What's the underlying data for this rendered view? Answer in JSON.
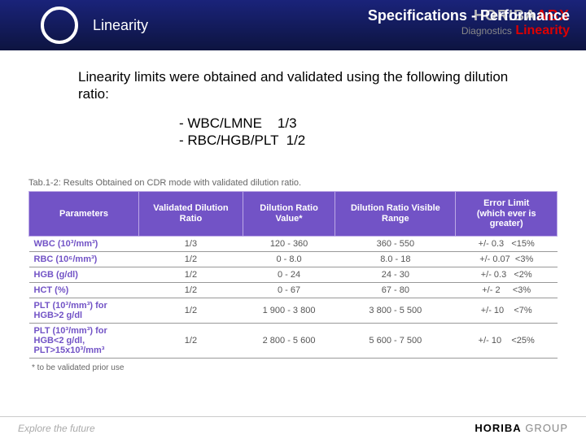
{
  "header": {
    "title": "Linearity",
    "spec": "Specifications - Performance",
    "brand_main": "HORIBA",
    "brand_sub": "ABX",
    "brand_diag": "Diagnostics",
    "sub_linearity": "Linearity"
  },
  "body": {
    "intro": "Linearity limits were obtained and validated using the following dilution ratio:",
    "line1": "- WBC/LMNE    1/3",
    "line2": "- RBC/HGB/PLT  1/2"
  },
  "table": {
    "caption": "Tab.1-2: Results Obtained on CDR mode with validated dilution ratio.",
    "headers": [
      "Parameters",
      "Validated Dilution Ratio",
      "Dilution Ratio Value*",
      "Dilution Ratio Visible Range",
      "Error Limit (which ever is greater)"
    ],
    "rows": [
      [
        "WBC (10³/mm³)",
        "1/3",
        "120 - 360",
        "360 - 550",
        "+/- 0.3   <15%"
      ],
      [
        "RBC (10⁶/mm³)",
        "1/2",
        "0 - 8.0",
        "8.0 - 18",
        "+/- 0.07  <3%"
      ],
      [
        "HGB (g/dl)",
        "1/2",
        "0 - 24",
        "24 - 30",
        "+/- 0.3   <2%"
      ],
      [
        "HCT (%)",
        "1/2",
        "0 - 67",
        "67 - 80",
        "+/- 2     <3%"
      ],
      [
        "PLT (10³/mm³) for HGB>2 g/dl",
        "1/2",
        "1 900 - 3 800",
        "3 800 - 5 500",
        "+/- 10    <7%"
      ],
      [
        "PLT (10³/mm³) for HGB<2 g/dl, PLT>15x10³/mm³",
        "1/2",
        "2 800 - 5 600",
        "5 600 - 7 500",
        "+/- 10    <25%"
      ]
    ],
    "note": "* to be validated prior use"
  },
  "footer": {
    "left": "Explore the future",
    "right_bold": "HORIBA",
    "right_light": " GROUP"
  },
  "colors": {
    "header_bg_top": "#1a237a",
    "header_bg_bottom": "#0d1440",
    "accent_red": "#d00000",
    "table_header_bg": "#7253c6",
    "table_header_border": "#bca8e6",
    "param_text": "#7253c6"
  }
}
